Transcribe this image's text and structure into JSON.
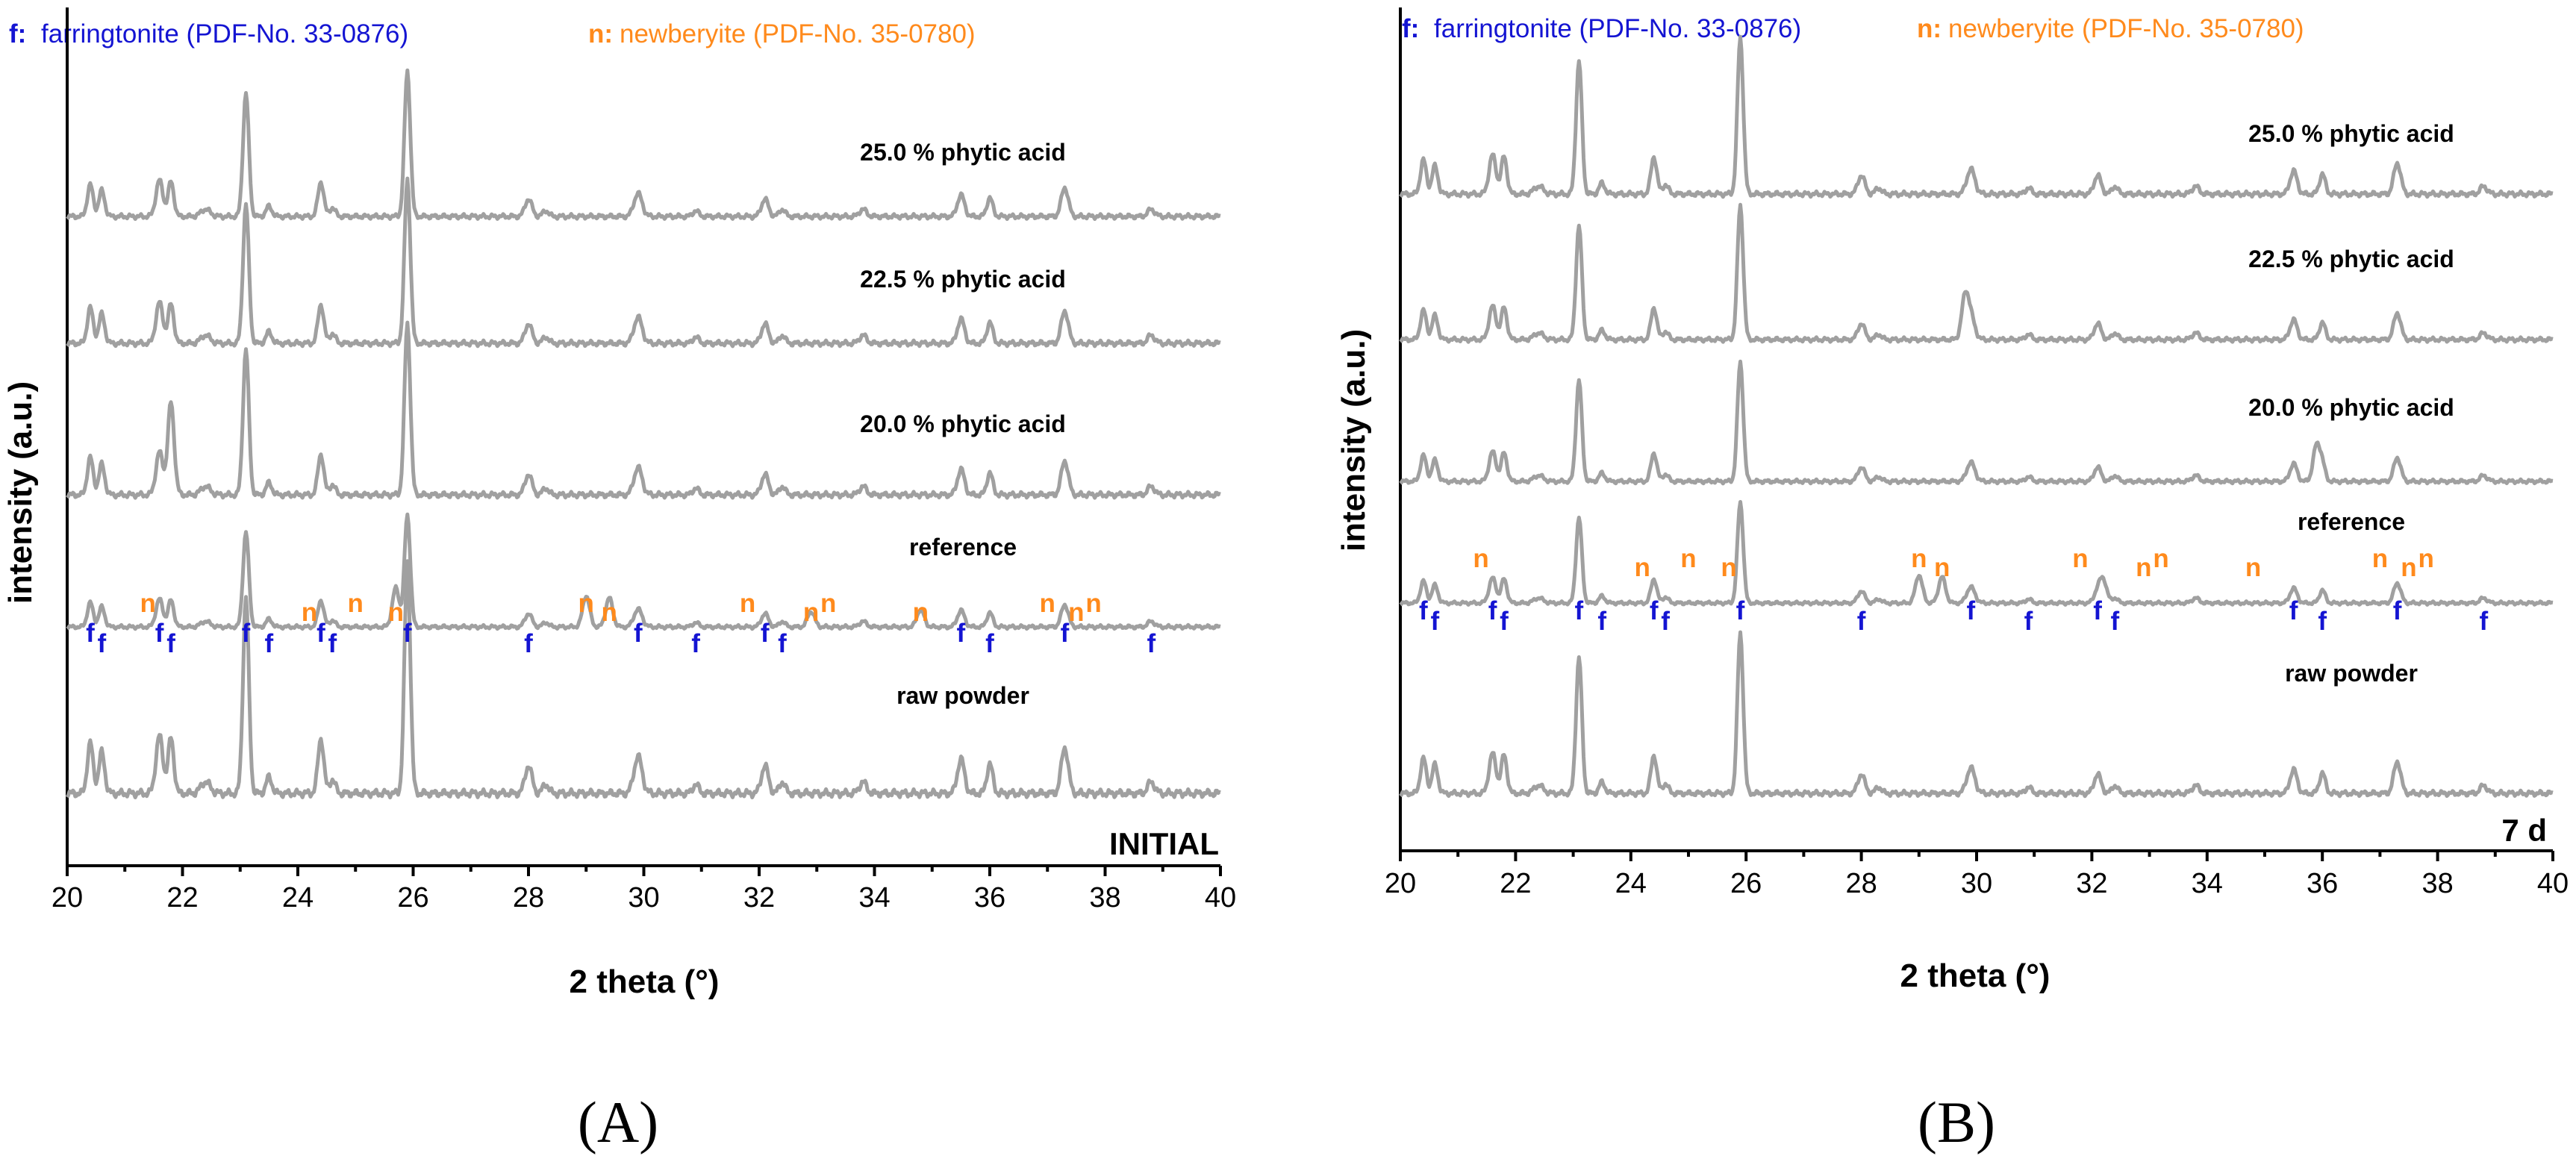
{
  "colors": {
    "trace": "#a0a0a0",
    "farringtonite": "#1414d2",
    "newberyite": "#ff8a1c",
    "axis": "#000000"
  },
  "legend": {
    "f_key": "f:",
    "f_name": "farringtonite (PDF-No. 33-0876)",
    "n_key": "n:",
    "n_name": "newberyite (PDF-No. 35-0780)"
  },
  "chart_data": [
    {
      "type": "line",
      "panel": "A",
      "panel_label": "(A)",
      "corner_label": "INITIAL",
      "xlabel": "2 theta (°)",
      "ylabel": "intensity (a.u.)",
      "xlim": [
        20,
        40
      ],
      "xticks": [
        20,
        22,
        24,
        26,
        28,
        30,
        32,
        34,
        36,
        38,
        40
      ],
      "xtick_labels": [
        "20",
        "22",
        "24",
        "26",
        "28",
        "30",
        "32",
        "34",
        "36",
        "38",
        "40"
      ],
      "series": [
        {
          "name": "raw powder",
          "base": 0.15,
          "strong": 1.0,
          "extra": []
        },
        {
          "name": "reference",
          "base": 0.28,
          "strong": 0.9,
          "extra": [
            [
              29.0,
              0.28
            ],
            [
              29.4,
              0.26
            ],
            [
              32.9,
              0.14
            ],
            [
              34.8,
              0.16
            ],
            [
              25.7,
              0.35
            ]
          ]
        },
        {
          "name": "20.0 % phytic acid",
          "base": 0.3,
          "strong": 1.0,
          "extra": [
            [
              21.8,
              0.3
            ]
          ]
        },
        {
          "name": "22.5 % phytic acid",
          "base": 0.25,
          "strong": 1.0,
          "extra": []
        },
        {
          "name": "25.0 % phytic acid",
          "base": 0.25,
          "strong": 1.0,
          "extra": []
        }
      ],
      "f_markers": [
        20.4,
        20.6,
        21.6,
        21.8,
        23.1,
        23.5,
        24.4,
        24.6,
        25.9,
        28.0,
        29.9,
        30.9,
        32.1,
        32.4,
        35.5,
        36.0,
        37.3,
        38.8
      ],
      "n_markers": [
        21.4,
        24.2,
        25.0,
        25.7,
        29.0,
        29.4,
        31.8,
        32.9,
        33.2,
        34.8,
        37.0,
        37.5,
        37.8
      ]
    },
    {
      "type": "line",
      "panel": "B",
      "panel_label": "(B)",
      "corner_label": "7 d",
      "xlabel": "2 theta (°)",
      "ylabel": "intensity (a.u.)",
      "xlim": [
        20,
        40
      ],
      "xticks": [
        20,
        22,
        24,
        26,
        28,
        30,
        32,
        34,
        36,
        38,
        40
      ],
      "xtick_labels": [
        "20",
        "22",
        "24",
        "26",
        "28",
        "30",
        "32",
        "34",
        "36",
        "38",
        "40"
      ],
      "series": [
        {
          "name": "raw powder",
          "base": 0.15,
          "strong": 1.0,
          "extra": []
        },
        {
          "name": "reference",
          "base": 0.28,
          "strong": 0.9,
          "extra": [
            [
              29.0,
              0.28
            ],
            [
              29.4,
              0.26
            ],
            [
              32.2,
              0.22
            ]
          ]
        },
        {
          "name": "20.0 % phytic acid",
          "base": 0.3,
          "strong": 1.0,
          "extra": [
            [
              35.9,
              0.3
            ]
          ]
        },
        {
          "name": "22.5 % phytic acid",
          "base": 0.25,
          "strong": 1.0,
          "extra": [
            [
              29.8,
              0.3
            ]
          ]
        },
        {
          "name": "25.0 % phytic acid",
          "base": 0.25,
          "strong": 1.0,
          "extra": []
        }
      ],
      "f_markers": [
        20.4,
        20.6,
        21.6,
        21.8,
        23.1,
        23.5,
        24.4,
        24.6,
        25.9,
        28.0,
        29.9,
        30.9,
        32.1,
        32.4,
        35.5,
        36.0,
        37.3,
        38.8
      ],
      "n_markers": [
        21.4,
        24.2,
        25.0,
        25.7,
        29.0,
        29.4,
        31.8,
        32.9,
        33.2,
        34.8,
        37.0,
        37.5,
        37.8
      ]
    }
  ]
}
